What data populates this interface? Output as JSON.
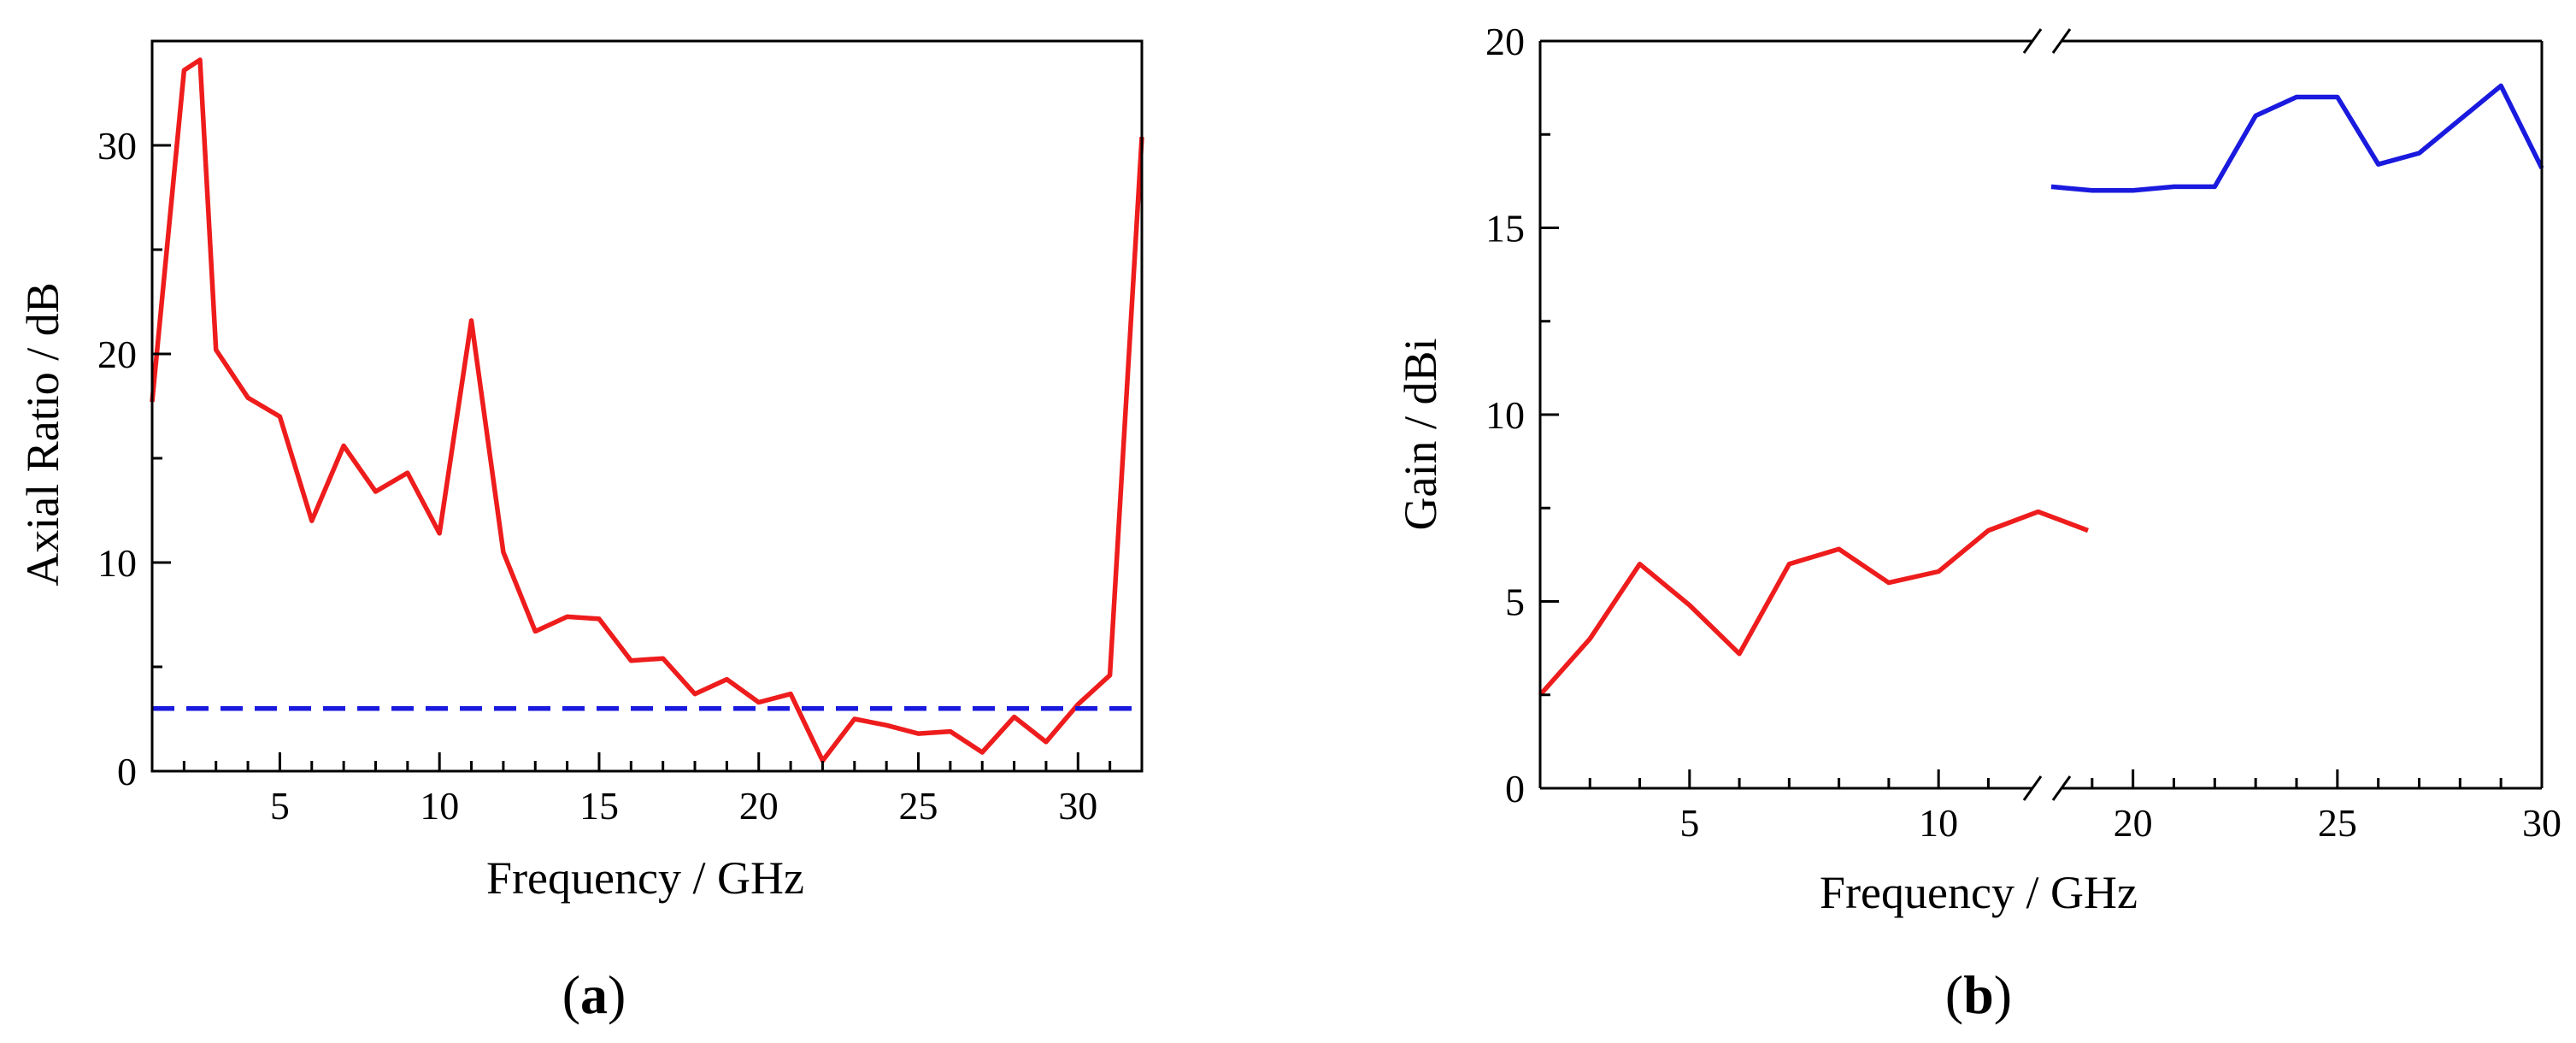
{
  "chart_data": [
    {
      "type": "line",
      "panel_label": "a",
      "xlabel": "Frequency / GHz",
      "ylabel": "Axial Ratio / dB",
      "xlim": [
        1,
        32
      ],
      "ylim": [
        0,
        35
      ],
      "x_ticks": [
        5,
        10,
        15,
        20,
        25,
        30
      ],
      "y_ticks": [
        0,
        10,
        20,
        30
      ],
      "grid": false,
      "series": [
        {
          "color": "#ee1c1c",
          "style": "solid",
          "x": [
            1,
            2,
            2.5,
            3,
            4,
            5,
            6,
            7,
            8,
            9,
            10,
            11,
            12,
            13,
            14,
            15,
            16,
            17,
            18,
            19,
            20,
            21,
            22,
            23,
            24,
            25,
            26,
            27,
            28,
            29,
            30,
            31,
            32
          ],
          "y": [
            17.7,
            33.6,
            34.1,
            20.2,
            17.9,
            17.0,
            12.0,
            15.6,
            13.4,
            14.3,
            11.4,
            21.6,
            10.5,
            6.7,
            7.4,
            7.3,
            5.3,
            5.4,
            3.7,
            4.4,
            3.3,
            3.7,
            0.5,
            2.5,
            2.2,
            1.8,
            1.9,
            0.9,
            2.6,
            1.4,
            3.2,
            4.6,
            30.4
          ]
        },
        {
          "color": "#1a1adf",
          "style": "dashed",
          "x": [
            1,
            32
          ],
          "y": [
            3,
            3
          ]
        }
      ]
    },
    {
      "type": "line",
      "panel_label": "b",
      "xlabel": "Frequency / GHz",
      "ylabel": "Gain / dBi",
      "x_break": [
        13,
        18
      ],
      "x_segments": [
        [
          2,
          13
        ],
        [
          18,
          30
        ]
      ],
      "ylim": [
        0,
        20
      ],
      "x_ticks": [
        5,
        10,
        20,
        25,
        30
      ],
      "y_ticks": [
        0,
        5,
        10,
        15,
        20
      ],
      "grid": false,
      "series": [
        {
          "color": "#ee1c1c",
          "x": [
            2,
            3,
            4,
            5,
            6,
            7,
            8,
            9,
            10,
            11,
            12,
            13
          ],
          "y": [
            2.5,
            4.0,
            6.0,
            4.9,
            3.6,
            6.0,
            6.4,
            5.5,
            5.8,
            6.9,
            7.4,
            6.9
          ]
        },
        {
          "color": "#1a1adf",
          "x": [
            18,
            19,
            20,
            21,
            22,
            23,
            24,
            25,
            26,
            27,
            28,
            29,
            30
          ],
          "y": [
            16.1,
            16.0,
            16.0,
            16.1,
            16.1,
            18.0,
            18.5,
            18.5,
            16.7,
            17.0,
            17.9,
            18.8,
            16.6
          ]
        }
      ]
    }
  ]
}
